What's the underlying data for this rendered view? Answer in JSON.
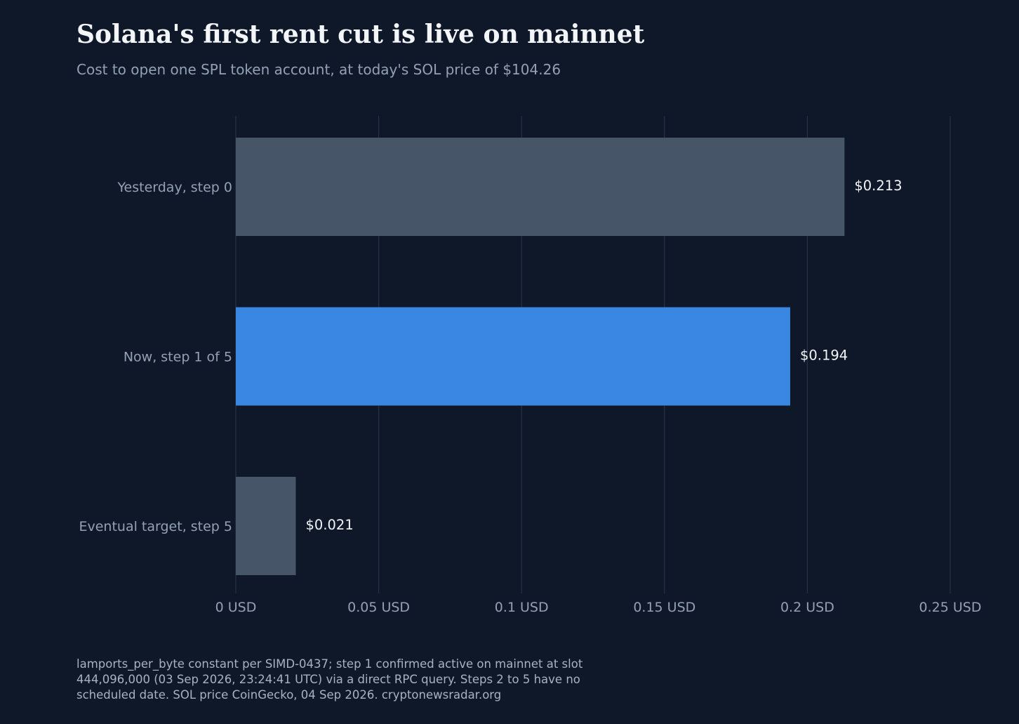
{
  "chart_data": {
    "type": "bar",
    "orientation": "horizontal",
    "title": "Solana's first rent cut is live on mainnet",
    "subtitle": "Cost to open one SPL token account, at today's SOL price of $104.26",
    "categories": [
      "Yesterday, step 0",
      "Now, step 1 of 5",
      "Eventual target, step 5"
    ],
    "values": [
      0.213,
      0.194,
      0.021
    ],
    "value_labels": [
      "$0.213",
      "$0.194",
      "$0.021"
    ],
    "bar_colors": [
      "#475569",
      "#3987e3",
      "#475569"
    ],
    "xlim": [
      0,
      0.25
    ],
    "x_ticks": [
      0,
      0.05,
      0.1,
      0.15,
      0.2,
      0.25
    ],
    "x_tick_labels": [
      "0 USD",
      "0.05 USD",
      "0.1 USD",
      "0.15 USD",
      "0.2 USD",
      "0.25 USD"
    ],
    "xlabel": "",
    "ylabel": "",
    "grid": "vertical",
    "legend": "none"
  },
  "footnote": {
    "lines": [
      "lamports_per_byte constant per SIMD-0437; step 1 confirmed active on mainnet at slot",
      "444,096,000 (03 Sep 2026, 23:24:41 UTC) via a direct RPC query. Steps 2 to 5 have no",
      "scheduled date. SOL price CoinGecko, 04 Sep 2026. cryptonewsradar.org"
    ]
  },
  "colors": {
    "background": "#0f1829",
    "gridline": "#253247",
    "muted_text": "#93a1b5",
    "value_label": "#f3f5f8"
  }
}
